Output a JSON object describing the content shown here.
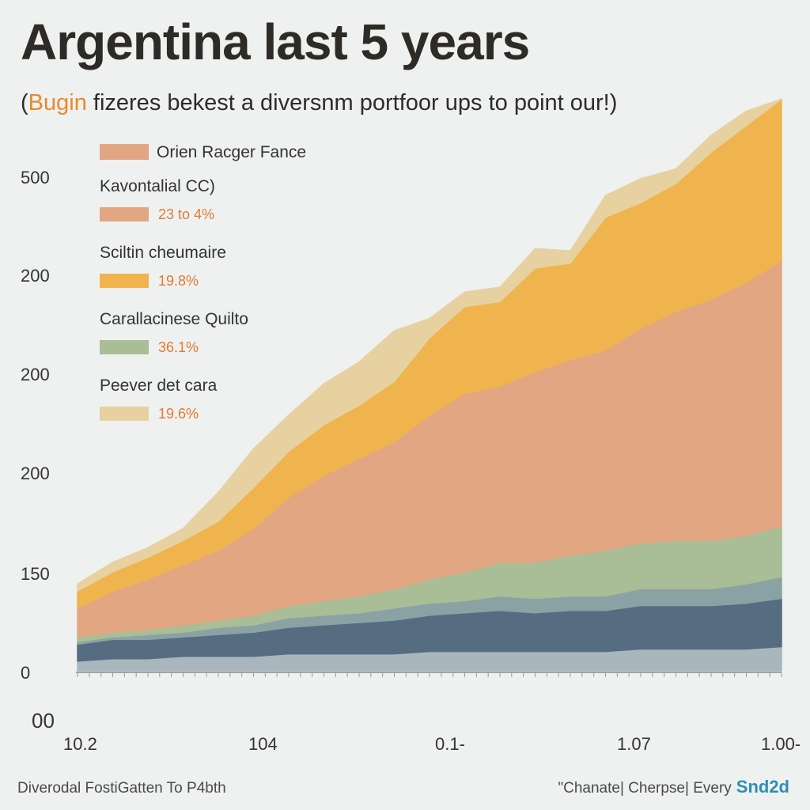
{
  "chart_data": {
    "type": "area",
    "title": "Argentina last 5 years",
    "subtitle_paren_open": "(",
    "subtitle_accent": "Bugin",
    "subtitle_rest": " fizeres bekest a diversnm portfoor ups to point our!)",
    "yticks": [
      "500",
      "200",
      "200",
      "200",
      "150",
      "0",
      "00"
    ],
    "xticks": [
      "10.2",
      "104",
      "0.1-",
      "1.07",
      "1.00-"
    ],
    "x": [
      0,
      1,
      2,
      3,
      4,
      5,
      6,
      7,
      8,
      9,
      10,
      11,
      12,
      13,
      14,
      15,
      16,
      17,
      18,
      19,
      20
    ],
    "legend": [
      {
        "name": "Orien Racger Fance",
        "pct": ""
      },
      {
        "name": "Kavontalial CC)",
        "pct": "23 to 4%"
      },
      {
        "name": "Sciltin cheumaire",
        "pct": "19.8%"
      },
      {
        "name": "Carallacinese Quilto",
        "pct": "36.1%"
      },
      {
        "name": "Peever det cara",
        "pct": "19.6%"
      }
    ],
    "series": [
      {
        "color": "#a9b6bd",
        "values": [
          4,
          5,
          5,
          6,
          6,
          6,
          7,
          7,
          7,
          7,
          8,
          8,
          8,
          8,
          8,
          8,
          9,
          9,
          9,
          9,
          10
        ]
      },
      {
        "color": "#566c80",
        "values": [
          7,
          8,
          8,
          8,
          9,
          10,
          11,
          12,
          13,
          14,
          15,
          16,
          17,
          16,
          17,
          17,
          18,
          18,
          18,
          19,
          20
        ]
      },
      {
        "color": "#8ba2a5",
        "values": [
          1,
          1,
          2,
          2,
          3,
          3,
          4,
          4,
          4,
          5,
          5,
          5,
          6,
          6,
          6,
          6,
          7,
          7,
          7,
          8,
          9
        ]
      },
      {
        "color": "#a9bd96",
        "values": [
          2,
          2,
          2,
          3,
          3,
          4,
          5,
          6,
          7,
          8,
          10,
          12,
          14,
          15,
          17,
          19,
          19,
          20,
          20,
          20,
          21
        ]
      },
      {
        "color": "#e2a683",
        "values": [
          12,
          17,
          21,
          25,
          29,
          36,
          45,
          52,
          57,
          61,
          68,
          74,
          73,
          79,
          81,
          83,
          89,
          95,
          100,
          105,
          110
        ]
      },
      {
        "color": "#f0b44e",
        "values": [
          7,
          8,
          9,
          10,
          12,
          17,
          19,
          21,
          22,
          25,
          32,
          36,
          35,
          43,
          40,
          55,
          52,
          53,
          61,
          65,
          67
        ]
      },
      {
        "color": "#e7d1a1",
        "values": [
          3,
          4,
          4,
          5,
          12,
          16,
          15,
          17,
          18,
          21,
          8,
          6,
          6,
          8,
          5,
          9,
          10,
          6,
          7,
          6,
          0
        ]
      }
    ]
  },
  "footer": {
    "left": "Diverodal  FostiGatten To P4bth",
    "right": "\"Chanate| Cherpse| Every",
    "brand": "Snd2d"
  }
}
